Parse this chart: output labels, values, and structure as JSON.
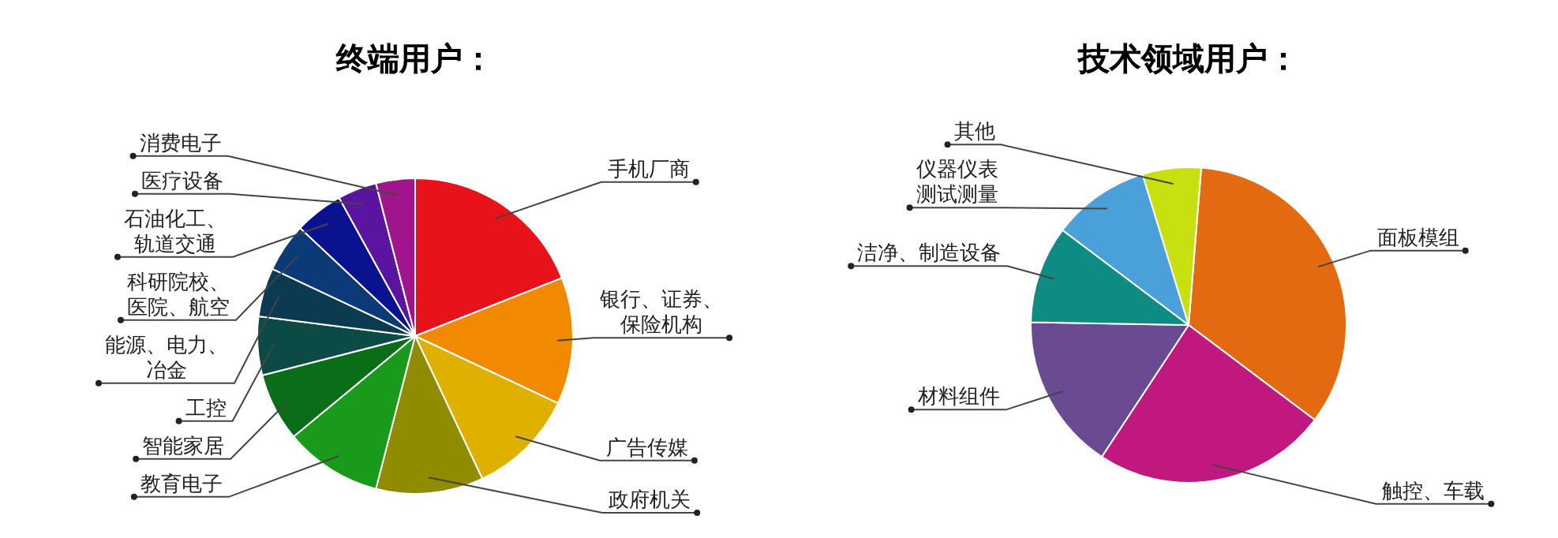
{
  "chart_data": [
    {
      "type": "pie",
      "title": "终端用户：",
      "categories": [
        "手机厂商",
        "银行、证券、保险机构",
        "广告传媒",
        "政府机关",
        "教育电子",
        "智能家居",
        "工控",
        "能源、电力、冶金",
        "科研院校、医院、航空",
        "石油化工、轨道交通",
        "医疗设备",
        "消费电子"
      ],
      "values": [
        19,
        13,
        11,
        11,
        10,
        7,
        6,
        5,
        5,
        5,
        4,
        4
      ],
      "colors": [
        "#e8121a",
        "#f28a00",
        "#e0b000",
        "#8f8c00",
        "#1a9a1a",
        "#0a6e18",
        "#0c4a45",
        "#0c3a50",
        "#0c3a78",
        "#0a1290",
        "#5a14a0",
        "#a0148c"
      ]
    },
    {
      "type": "pie",
      "title": "技术领域用户：",
      "categories": [
        "面板模组",
        "触控、车载",
        "材料组件",
        "洁净、制造设备",
        "仪器仪表测试测量",
        "其他"
      ],
      "values": [
        34,
        24,
        16,
        10,
        10,
        6
      ],
      "colors": [
        "#e36a10",
        "#c0187e",
        "#6a4a90",
        "#0e8c84",
        "#4aa0d8",
        "#c8e010"
      ]
    }
  ]
}
